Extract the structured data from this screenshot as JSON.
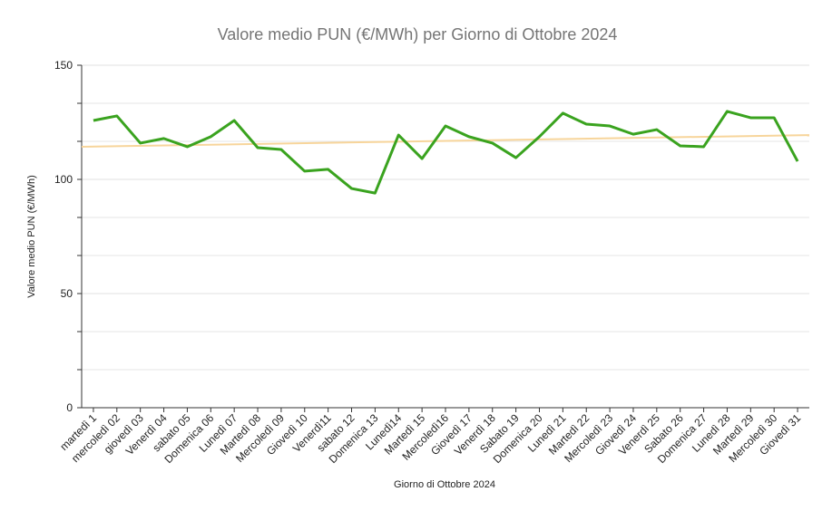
{
  "chart_data": {
    "type": "line",
    "title": "Valore medio PUN (€/MWh) per Giorno di Ottobre 2024",
    "x_label": "Giorno di Ottobre 2024",
    "y_label": "Valore medio PUN (€/MWh)",
    "categories": [
      "martedì 1",
      "mercoledì 02",
      "giovedì 03",
      "Venerdì 04",
      "sabato 05",
      "Domenica 06",
      "Lunedì 07",
      "Martedì 08",
      "Mercoledì 09",
      "Giovedì 10",
      "Venerdì11",
      "sabato 12",
      "Domenica 13",
      "Lunedì14",
      "Martedì 15",
      "Mercoledì16",
      "Giovedì 17",
      "Venerdì 18",
      "Sabato 19",
      "Domenica 20",
      "Lunedì 21",
      "Martedì 22",
      "Mercoledì 23",
      "Giovedì 24",
      "Venerdì 25",
      "Sabato 26",
      "Domenica 27",
      "Lunedì 28",
      "Martedì 29",
      "Mercoledì 30",
      "Giovedì 31"
    ],
    "series": [
      {
        "name": "Valore medio PUN",
        "color": "#3aa31f",
        "values": [
          125.8,
          127.8,
          115.9,
          117.9,
          114.3,
          118.7,
          125.8,
          113.9,
          113.1,
          103.6,
          104.4,
          96.0,
          94.0,
          119.4,
          109.1,
          123.4,
          118.7,
          115.9,
          109.5,
          118.7,
          129.0,
          124.2,
          123.4,
          119.8,
          121.8,
          114.7,
          114.3,
          129.8,
          127.0,
          127.0,
          107.9
        ]
      }
    ],
    "trendline": {
      "color": "#f7d59b",
      "start": 114.3,
      "end": 119.4
    },
    "ylim": [
      0,
      150
    ],
    "yticks": [
      0,
      50,
      100,
      150
    ],
    "minor_divisions": 3,
    "grid": true
  }
}
